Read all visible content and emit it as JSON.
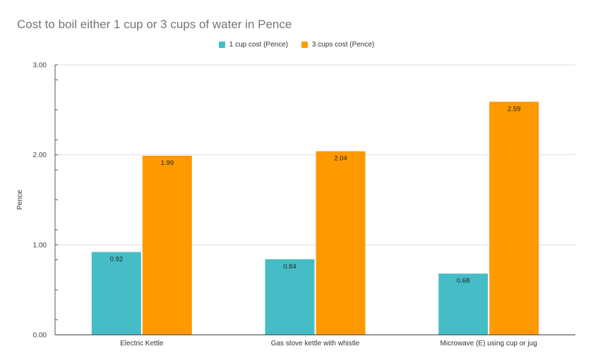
{
  "chart_data": {
    "type": "bar",
    "title": "Cost to boil either 1 cup or 3 cups of water in Pence",
    "xlabel": "",
    "ylabel": "Pence",
    "ylim": [
      0,
      3
    ],
    "yticks": [
      "0.00",
      "1.00",
      "2.00",
      "3.00"
    ],
    "categories": [
      "Electric Kettle",
      "Gas stove kettle with whistle",
      "Microwave (E) using cup or jug"
    ],
    "series": [
      {
        "name": "1 cup cost (Pence)",
        "values": [
          0.92,
          0.84,
          0.68
        ],
        "labels": [
          "0.92",
          "0.84",
          "0.68"
        ],
        "color": "#46bdc6"
      },
      {
        "name": "3 cups cost (Pence)",
        "values": [
          1.99,
          2.04,
          2.59
        ],
        "labels": [
          "1.99",
          "2.04",
          "2.59"
        ],
        "color": "#ff9900"
      }
    ],
    "grid": true,
    "legend_position": "top"
  }
}
